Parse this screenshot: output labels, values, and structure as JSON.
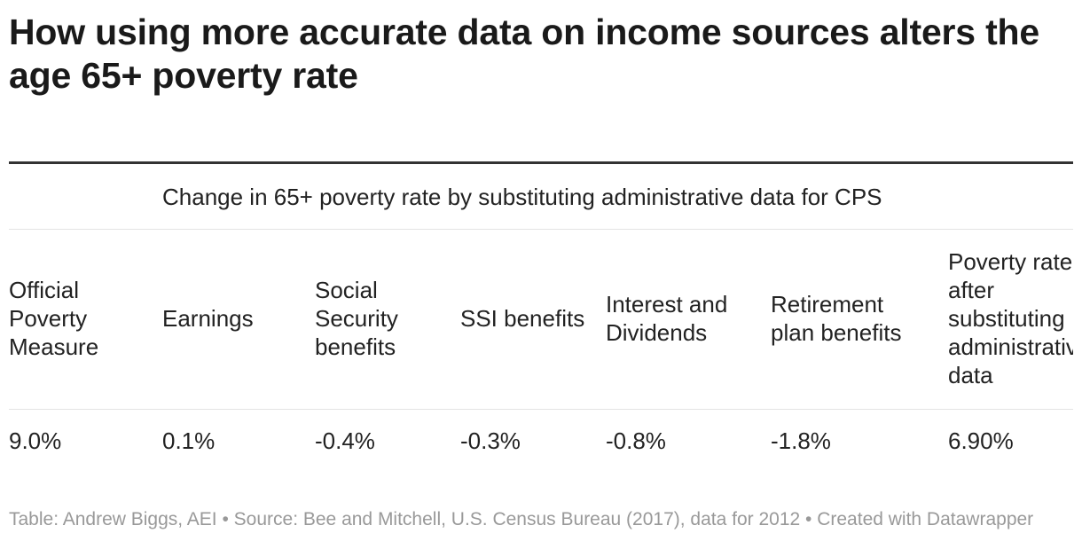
{
  "title": "How using more accurate data on income sources alters the age 65+ poverty rate",
  "chart_data": {
    "type": "table",
    "title": "How using more accurate data on income sources alters the age 65+ poverty rate",
    "span_header": "Change in 65+ poverty rate by substituting administrative data for CPS",
    "columns": [
      "Official Poverty Measure",
      "Earnings",
      "Social Security benefits",
      "SSI benefits",
      "Interest and Dividends",
      "Retirement plan benefits",
      "Poverty rate after substituting administrative data"
    ],
    "rows": [
      [
        "9.0%",
        "0.1%",
        "-0.4%",
        "-0.3%",
        "-0.8%",
        "-1.8%",
        "6.90%"
      ]
    ],
    "values": [
      9.0,
      0.1,
      -0.4,
      -0.3,
      -0.8,
      -1.8,
      6.9
    ]
  },
  "footer": "Table: Andrew Biggs, AEI • Source: Bee and Mitchell, U.S. Census Bureau (2017), data for 2012 • Created with Datawrapper"
}
